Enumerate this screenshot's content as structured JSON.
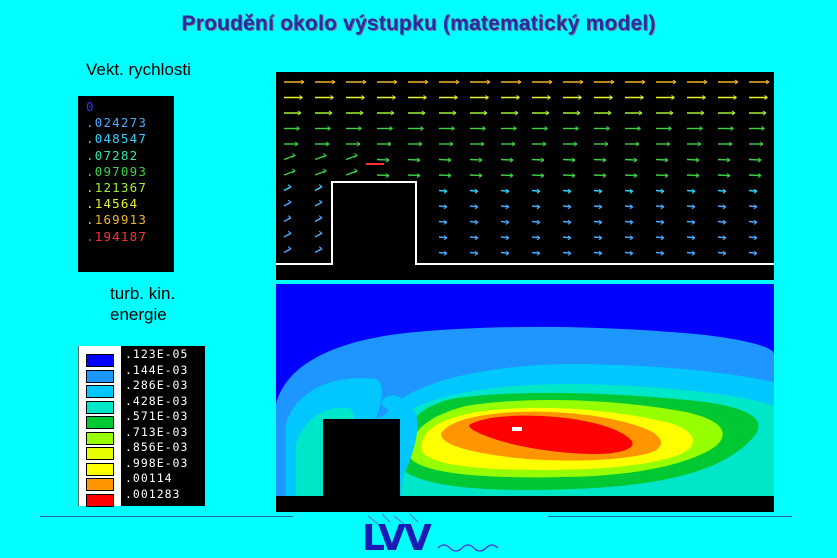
{
  "title": "Proudění okolo výstupku (matematický model)",
  "velocity_label": "Vekt. rychlosti",
  "tke_label_line1": "turb. kin.",
  "tke_label_line2": "energie",
  "velocity_legend": [
    {
      "value": "0",
      "color": "#3232ff"
    },
    {
      "value": ".024273",
      "color": "#46aaff"
    },
    {
      "value": ".048547",
      "color": "#32d2ff"
    },
    {
      "value": ".07282",
      "color": "#32e6b4"
    },
    {
      "value": ".097093",
      "color": "#3cd246"
    },
    {
      "value": ".121367",
      "color": "#a0f032"
    },
    {
      "value": ".14564",
      "color": "#e6f032"
    },
    {
      "value": ".169913",
      "color": "#f0b428"
    },
    {
      "value": ".194187",
      "color": "#ff3232"
    }
  ],
  "tke_legend": [
    {
      "value": ".123E-05",
      "color": "#0000ff"
    },
    {
      "value": ".144E-03",
      "color": "#1e96ff"
    },
    {
      "value": ".286E-03",
      "color": "#00c8ff"
    },
    {
      "value": ".428E-03",
      "color": "#00e6c8"
    },
    {
      "value": ".571E-03",
      "color": "#00c832"
    },
    {
      "value": ".713E-03",
      "color": "#96ff00"
    },
    {
      "value": ".856E-03",
      "color": "#e6ff00"
    },
    {
      "value": ".998E-03",
      "color": "#ffff00"
    },
    {
      "value": ".00114",
      "color": "#ff9600"
    },
    {
      "value": ".001283",
      "color": "#ff0000"
    }
  ],
  "logo_text": "LVV",
  "colors": {
    "background": "#00ffff",
    "title": "#2a2aa0"
  }
}
